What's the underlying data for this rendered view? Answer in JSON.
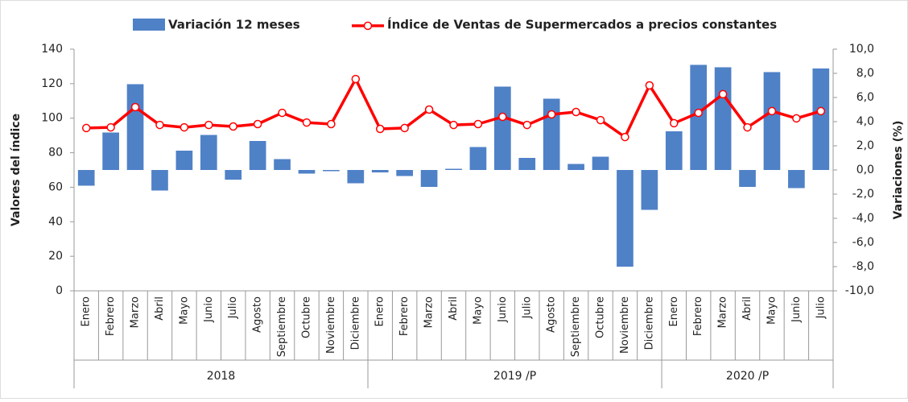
{
  "chart_data": {
    "type": "bar-line",
    "groups": [
      {
        "label": "2018",
        "categories": [
          "Enero",
          "Febrero",
          "Marzo",
          "Abril",
          "Mayo",
          "Junio",
          "Julio",
          "Agosto",
          "Septiembre",
          "Octubre",
          "Noviembre",
          "Diciembre"
        ]
      },
      {
        "label": "2019 /P",
        "categories": [
          "Enero",
          "Febrero",
          "Marzo",
          "Abril",
          "Mayo",
          "Junio",
          "Julio",
          "Agosto",
          "Septiembre",
          "Octubre",
          "Noviembre",
          "Diciembre"
        ]
      },
      {
        "label": "2020 /P",
        "categories": [
          "Enero",
          "Febrero",
          "Marzo",
          "Abril",
          "Mayo",
          "Junio",
          "Julio"
        ]
      }
    ],
    "series": [
      {
        "name": "Variación 12 meses",
        "type": "bar",
        "axis": "y2",
        "color": "#4f81c7",
        "values": [
          -1.3,
          3.1,
          7.1,
          -1.7,
          1.6,
          2.9,
          -0.8,
          2.4,
          0.9,
          -0.3,
          -0.1,
          -1.1,
          -0.2,
          -0.5,
          -1.4,
          0.1,
          1.9,
          6.9,
          1.0,
          5.9,
          0.5,
          1.1,
          -8.0,
          -3.3,
          3.2,
          8.7,
          8.5,
          -1.4,
          8.1,
          -1.5,
          8.4
        ]
      },
      {
        "name": "Índice de Ventas de Supermercados a precios constantes",
        "type": "line",
        "axis": "y",
        "color": "#ff0000",
        "values": [
          94.3,
          94.7,
          106.4,
          96.1,
          94.7,
          96.1,
          95.2,
          96.6,
          103.1,
          97.5,
          96.6,
          122.7,
          93.8,
          94.3,
          105.0,
          96.1,
          96.6,
          100.8,
          96.1,
          102.2,
          103.6,
          98.9,
          89.1,
          119.0,
          97.1,
          103.1,
          113.9,
          94.7,
          104.1,
          99.9,
          104.1
        ]
      }
    ],
    "ylabel": "Valores del índice",
    "y2label": "Variaciones (%)",
    "ylim": [
      0,
      140
    ],
    "yticks": [
      0,
      20,
      40,
      60,
      80,
      100,
      120,
      140
    ],
    "y2lim": [
      -10,
      10
    ],
    "y2ticks": [
      {
        "value": -10,
        "label": "-10,0"
      },
      {
        "value": -8,
        "label": "-8,0"
      },
      {
        "value": -6,
        "label": "-6,0"
      },
      {
        "value": -4,
        "label": "-4,0"
      },
      {
        "value": -2,
        "label": "-2,0"
      },
      {
        "value": 0,
        "label": "0,0"
      },
      {
        "value": 2,
        "label": "2,0"
      },
      {
        "value": 4,
        "label": "4,0"
      },
      {
        "value": 6,
        "label": "6,0"
      },
      {
        "value": 8,
        "label": "8,0"
      },
      {
        "value": 10,
        "label": "10,0"
      }
    ],
    "legend": "top"
  }
}
